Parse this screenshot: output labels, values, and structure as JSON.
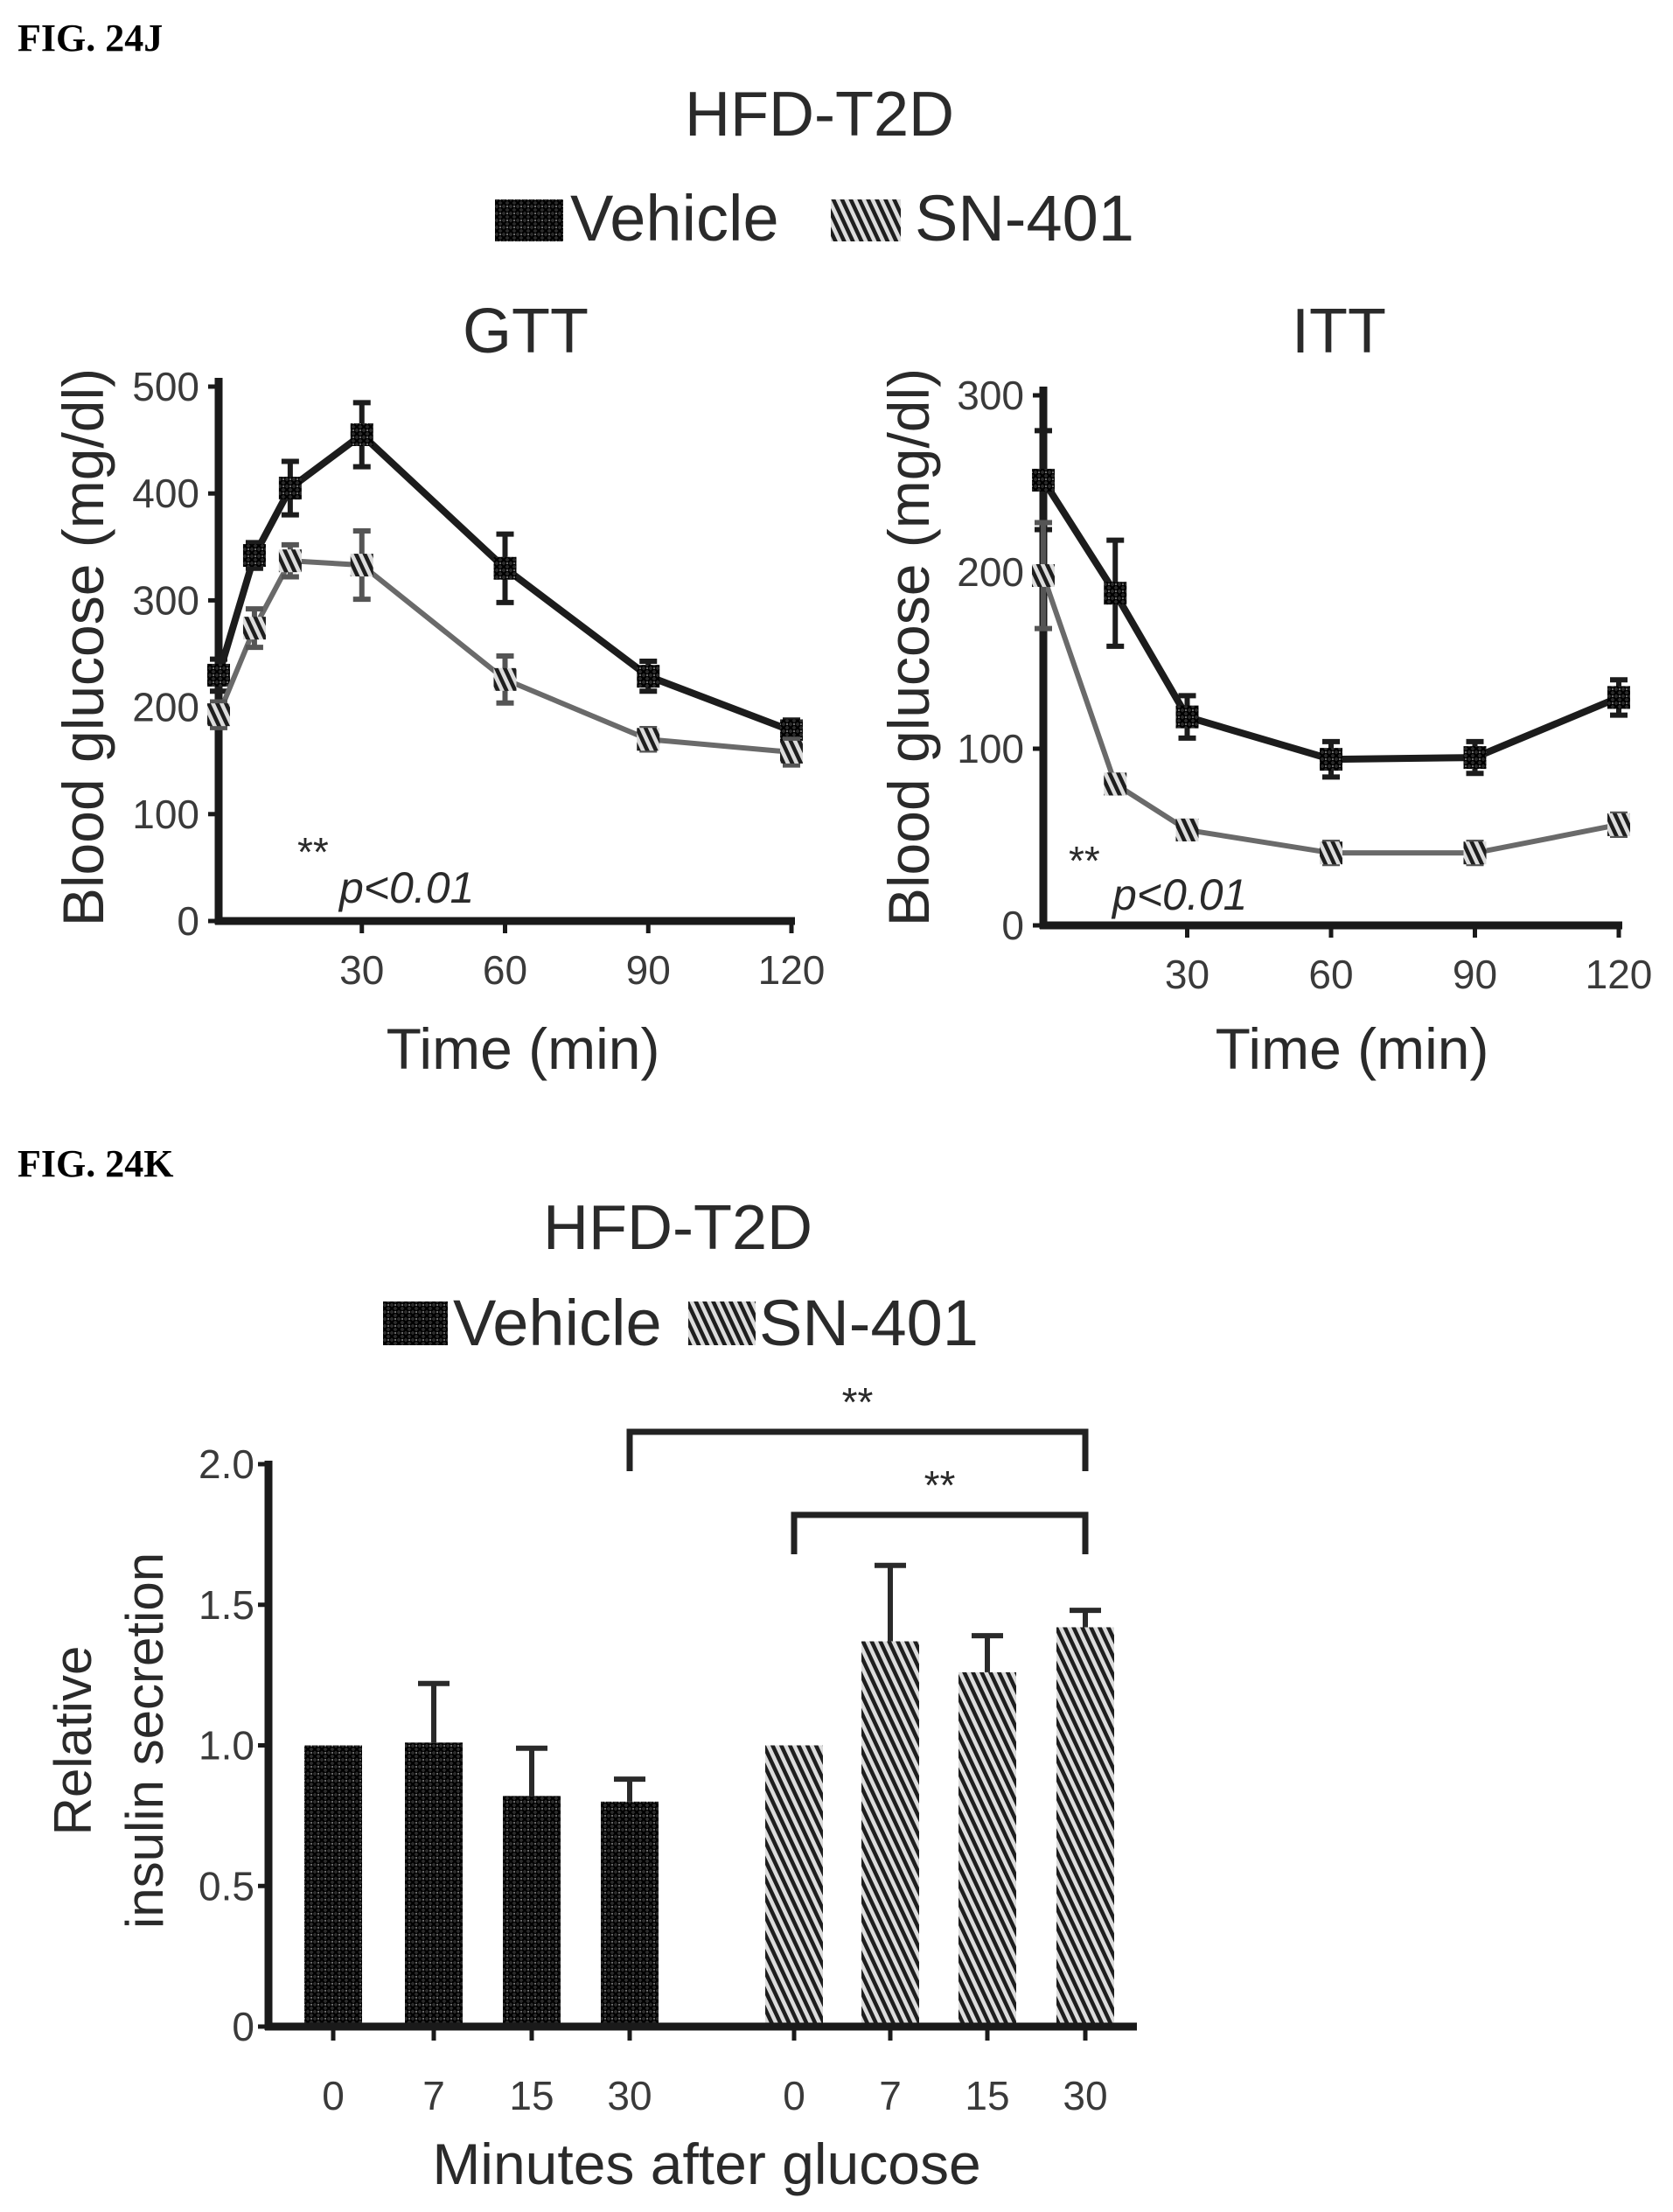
{
  "figures": {
    "fig_j_label": "FIG. 24J",
    "fig_k_label": "FIG. 24K"
  },
  "fig_j": {
    "title": "HFD-T2D",
    "legend": [
      {
        "name": "Vehicle",
        "pattern": "crosshatch-dark"
      },
      {
        "name": "SN-401",
        "pattern": "diagonal-hatch"
      }
    ]
  },
  "fig_k": {
    "title": "HFD-T2D",
    "legend": [
      {
        "name": "Vehicle",
        "pattern": "crosshatch-dark"
      },
      {
        "name": "SN-401",
        "pattern": "diagonal-hatch"
      }
    ]
  },
  "colors": {
    "vehicle": "#1c1c1c",
    "sn401": "#6a6a6a",
    "axis": "#1a1a1a",
    "text": "#2a2a2a"
  },
  "chart_data": [
    {
      "id": "gtt",
      "type": "line",
      "title": "GTT",
      "xlabel": "Time (min)",
      "ylabel": "Blood glucose (mg/dl)",
      "xlim": [
        0,
        120
      ],
      "ylim": [
        0,
        500
      ],
      "xticks": [
        30,
        60,
        90,
        120
      ],
      "yticks": [
        0,
        100,
        200,
        300,
        400,
        500
      ],
      "annotation": {
        "stars": "**",
        "text": "p<0.01"
      },
      "x": [
        0,
        7.5,
        15,
        30,
        60,
        90,
        120
      ],
      "series": [
        {
          "name": "Vehicle",
          "values": [
            230,
            342,
            405,
            455,
            330,
            229,
            178
          ],
          "errors": [
            15,
            12,
            25,
            30,
            32,
            14,
            10
          ]
        },
        {
          "name": "SN-401",
          "values": [
            193,
            274,
            337,
            333,
            226,
            170,
            158
          ],
          "errors": [
            12,
            18,
            15,
            32,
            22,
            10,
            12
          ]
        }
      ],
      "grid": false
    },
    {
      "id": "itt",
      "type": "line",
      "title": "ITT",
      "xlabel": "Time (min)",
      "ylabel": "Blood glucose (mg/dl)",
      "xlim": [
        0,
        120
      ],
      "ylim": [
        0,
        300
      ],
      "xticks": [
        30,
        60,
        90,
        120
      ],
      "yticks": [
        0,
        100,
        200,
        300
      ],
      "annotation": {
        "stars": "**",
        "text": "p<0.01"
      },
      "x": [
        0,
        15,
        30,
        60,
        90,
        120
      ],
      "series": [
        {
          "name": "Vehicle",
          "values": [
            252,
            188,
            118,
            94,
            95,
            129
          ],
          "errors": [
            28,
            30,
            12,
            10,
            9,
            10
          ]
        },
        {
          "name": "SN-401",
          "values": [
            198,
            80,
            54,
            41,
            41,
            57
          ],
          "errors": [
            30,
            5,
            5,
            6,
            6,
            6
          ]
        }
      ],
      "grid": false
    },
    {
      "id": "insulin",
      "type": "bar",
      "title": "HFD-T2D",
      "xlabel": "Minutes after glucose",
      "ylabel": "Relative insulin secretion",
      "ylabel_lines": [
        "Relative",
        "insulin secretion"
      ],
      "ylim": [
        0,
        2.0
      ],
      "yticks": [
        "0",
        "0.5",
        "1.0",
        "1.5",
        "2.0"
      ],
      "categories": [
        "0",
        "7",
        "15",
        "30"
      ],
      "series": [
        {
          "name": "Vehicle",
          "values": [
            1.0,
            1.01,
            0.82,
            0.8
          ],
          "errors": [
            0,
            0.21,
            0.17,
            0.08
          ]
        },
        {
          "name": "SN-401",
          "values": [
            1.0,
            1.37,
            1.26,
            1.42
          ],
          "errors": [
            0,
            0.27,
            0.13,
            0.06
          ]
        }
      ],
      "significance": [
        {
          "from": {
            "series": "Vehicle",
            "category": "30"
          },
          "to": {
            "series": "SN-401",
            "category": "30"
          },
          "label": "**"
        },
        {
          "from": {
            "series": "SN-401",
            "category": "0"
          },
          "to": {
            "series": "SN-401",
            "category": "30"
          },
          "label": "**"
        }
      ],
      "grid": false
    }
  ]
}
